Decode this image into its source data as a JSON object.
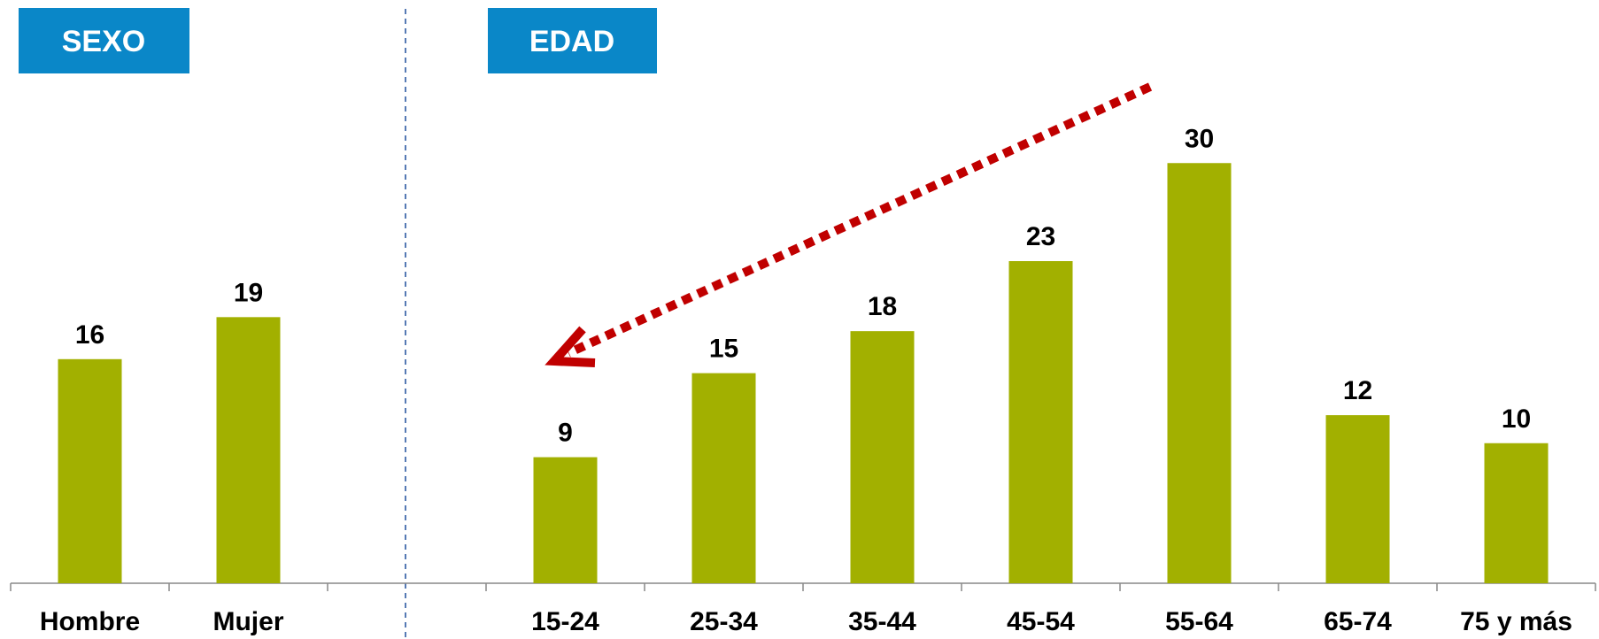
{
  "chart_data": {
    "type": "bar",
    "annotations": [
      "SEXO",
      "EDAD"
    ],
    "categories": [
      "Hombre",
      "Mujer",
      null,
      "15-24",
      "25-34",
      "35-44",
      "45-54",
      "55-64",
      "65-74",
      "75 y más"
    ],
    "values": [
      16,
      19,
      null,
      9,
      15,
      18,
      23,
      30,
      12,
      10
    ],
    "color": "#a2b000",
    "ylim": [
      0,
      40
    ]
  }
}
